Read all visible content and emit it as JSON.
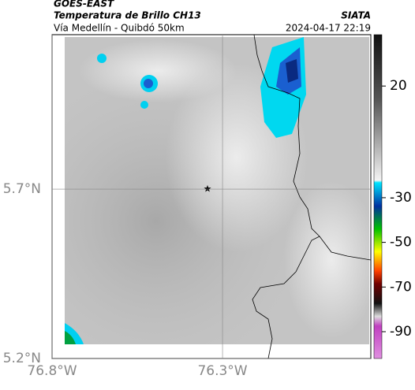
{
  "header": {
    "source": "GOES-EAST",
    "product": "Temperatura de Brillo CH13",
    "region": "Vía Medellín - Quibdó 50km",
    "brand": "SIATA",
    "datetime": "2024-04-17 22:19"
  },
  "map": {
    "lon_range": [
      -76.8,
      -75.865
    ],
    "lat_range": [
      5.2,
      6.156
    ],
    "lon_ticks": [
      {
        "value": -76.8,
        "label": "76.8°W"
      },
      {
        "value": -76.3,
        "label": "76.3°W"
      }
    ],
    "lat_ticks": [
      {
        "value": 5.7,
        "label": "5.7°N"
      },
      {
        "value": 5.2,
        "label": "5.2°N"
      }
    ]
  },
  "colorbar": {
    "range": [
      -102,
      43
    ],
    "ticks": [
      20,
      -30,
      -50,
      -70,
      -90
    ]
  }
}
